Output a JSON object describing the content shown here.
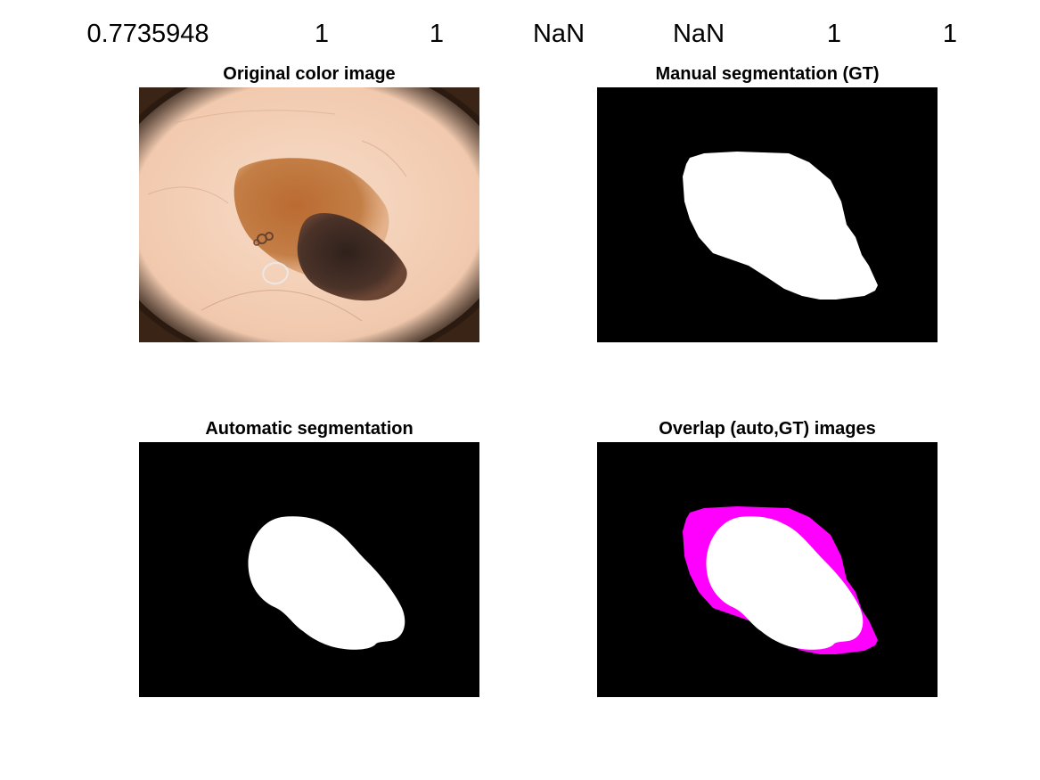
{
  "metrics": [
    "0.7735948",
    "1",
    "1",
    "NaN",
    "NaN",
    "1",
    "1"
  ],
  "panels": {
    "original": {
      "title": "Original color image"
    },
    "manual": {
      "title": "Manual segmentation (GT)"
    },
    "automatic": {
      "title": "Automatic segmentation"
    },
    "overlap": {
      "title": "Overlap (auto,GT) images"
    }
  },
  "colors": {
    "figure_background": "#ffffff",
    "mask_background": "#000000",
    "mask_foreground": "#ffffff",
    "overlap_difference": "#ff00ff",
    "skin": "#f2cdb4",
    "lesion_brown": "#b86a2c",
    "lesion_dark": "#3f2b22"
  }
}
